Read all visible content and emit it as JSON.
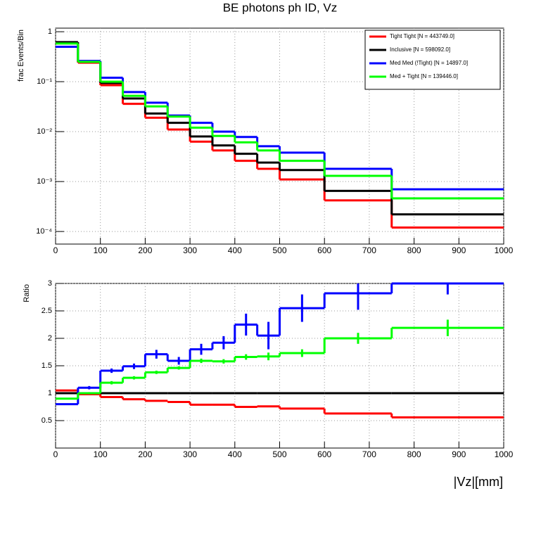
{
  "chart_data": [
    {
      "type": "histogram",
      "title": "BE photons ph ID, Vz",
      "ylabel": "frac Events/Bin",
      "bins": [
        0,
        50,
        100,
        150,
        200,
        250,
        300,
        350,
        400,
        450,
        500,
        600,
        750,
        1000
      ],
      "xlim": [
        0,
        1000
      ],
      "xticks": [
        0,
        100,
        200,
        300,
        400,
        500,
        600,
        700,
        800,
        900,
        1000
      ],
      "ylim": [
        5.6e-05,
        1.18
      ],
      "log_y": true,
      "grid": true,
      "legend": "top-right",
      "yticks": [
        {
          "value": 0.0001,
          "label": "10⁻⁴"
        },
        {
          "value": 0.001,
          "label": "10⁻³"
        },
        {
          "value": 0.01,
          "label": "10⁻²"
        },
        {
          "value": 0.1,
          "label": "10⁻¹"
        },
        1
      ],
      "series": [
        {
          "name": "Tight Tight [N = 443749.0]",
          "color": "#ff0000",
          "values": [
            0.6,
            0.24,
            0.085,
            0.036,
            0.019,
            0.011,
            0.0063,
            0.0042,
            0.0026,
            0.0018,
            0.0011,
            0.00042,
            0.00012
          ]
        },
        {
          "name": "Inclusive [N = 598092.0]",
          "color": "#000000",
          "values": [
            0.62,
            0.25,
            0.094,
            0.046,
            0.023,
            0.015,
            0.008,
            0.0053,
            0.0036,
            0.0024,
            0.0017,
            0.00065,
            0.00022
          ]
        },
        {
          "name": "Med Med (!Tight) [N = 14897.0]",
          "color": "#0000ff",
          "values": [
            0.5,
            0.26,
            0.12,
            0.062,
            0.038,
            0.021,
            0.015,
            0.01,
            0.0078,
            0.0051,
            0.0038,
            0.0018,
            0.0007
          ]
        },
        {
          "name": "Med + Tight [N = 139446.0]",
          "color": "#00ff00",
          "values": [
            0.58,
            0.25,
            0.1,
            0.052,
            0.032,
            0.02,
            0.012,
            0.0082,
            0.0061,
            0.0042,
            0.0026,
            0.0013,
            0.00046
          ]
        }
      ]
    },
    {
      "type": "histogram",
      "ylabel": "Ratio",
      "xlabel": "|Vz|[mm]",
      "bins": [
        0,
        50,
        100,
        150,
        200,
        250,
        300,
        350,
        400,
        450,
        500,
        600,
        750,
        1000
      ],
      "xlim": [
        0,
        1000
      ],
      "xticks": [
        0,
        100,
        200,
        300,
        400,
        500,
        600,
        700,
        800,
        900,
        1000
      ],
      "ylim": [
        0,
        3
      ],
      "yticks": [
        0.5,
        1,
        1.5,
        2,
        2.5,
        3
      ],
      "log_y": false,
      "grid": true,
      "series": [
        {
          "color": "#ff0000",
          "values": [
            1.05,
            0.98,
            0.93,
            0.89,
            0.86,
            0.84,
            0.79,
            0.79,
            0.75,
            0.76,
            0.72,
            0.63,
            0.56
          ]
        },
        {
          "color": "#000000",
          "values": [
            1,
            1,
            1,
            1,
            1,
            1,
            1,
            1,
            1,
            1,
            1,
            1,
            1
          ]
        },
        {
          "color": "#0000ff",
          "values": [
            0.8,
            1.1,
            1.41,
            1.49,
            1.71,
            1.59,
            1.8,
            1.92,
            2.25,
            2.05,
            2.55,
            2.82,
            3.0
          ],
          "errors": [
            0.01,
            0.03,
            0.04,
            0.05,
            0.08,
            0.07,
            0.1,
            0.12,
            0.2,
            0.25,
            0.25,
            0.3,
            0.2
          ]
        },
        {
          "color": "#00ff00",
          "values": [
            0.9,
            1.0,
            1.19,
            1.28,
            1.38,
            1.46,
            1.59,
            1.58,
            1.66,
            1.67,
            1.73,
            2.0,
            2.19
          ],
          "errors": [
            0.01,
            0.02,
            0.03,
            0.03,
            0.03,
            0.03,
            0.04,
            0.04,
            0.05,
            0.07,
            0.07,
            0.1,
            0.15
          ]
        }
      ]
    }
  ]
}
